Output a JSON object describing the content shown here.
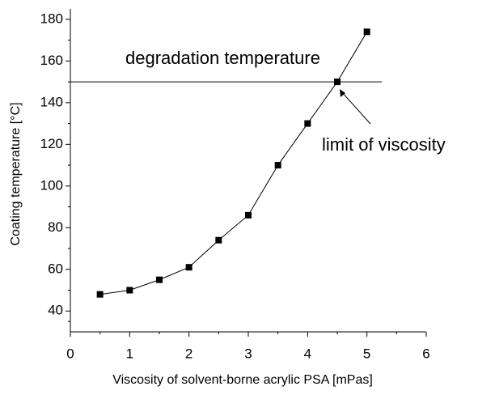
{
  "chart_data": {
    "type": "line",
    "x_label": "Viscosity of solvent-borne acrylic PSA [mPas]",
    "y_label": "Coating temperature [°C]",
    "x": [
      0.5,
      1,
      1.5,
      2,
      2.5,
      3,
      3.5,
      4,
      4.5,
      5
    ],
    "series": [
      {
        "name": "Coating temperature",
        "color": "#000000",
        "values": [
          48,
          50,
          55,
          61,
          74,
          86,
          110,
          130,
          150,
          174
        ]
      }
    ],
    "xlim": [
      0,
      6
    ],
    "xticks": [
      0,
      1,
      2,
      3,
      4,
      5,
      6
    ],
    "ylim": [
      30,
      185
    ],
    "yticks": [
      40,
      60,
      80,
      100,
      120,
      140,
      160,
      180
    ],
    "reference_line": {
      "value": 150,
      "x": [
        0,
        5.25
      ]
    },
    "annotations": [
      "degradation temperature",
      "limit of viscosity"
    ]
  }
}
